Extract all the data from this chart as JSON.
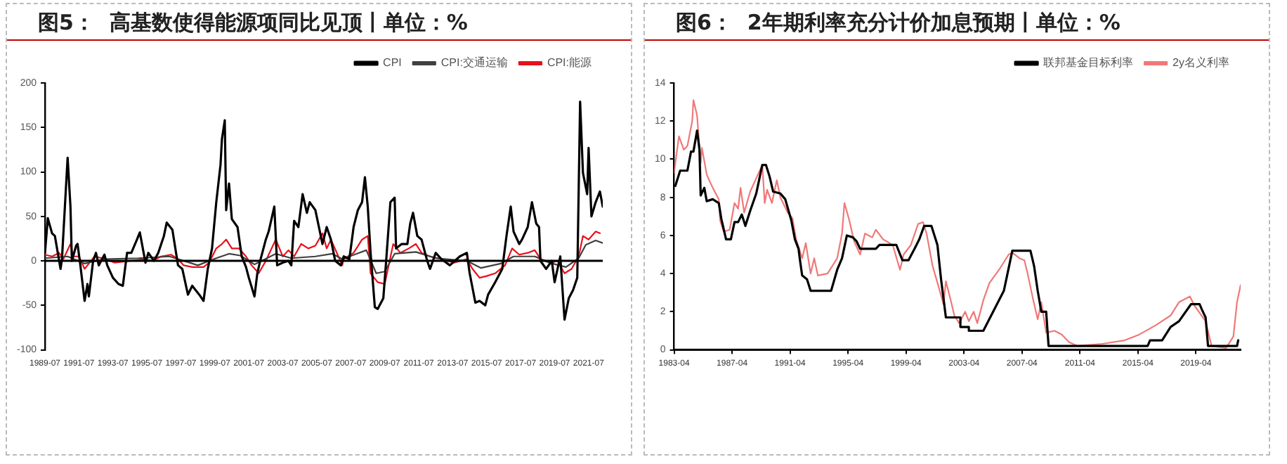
{
  "chart_data": [
    {
      "type": "line",
      "title": "图5：  高基数使得能源项同比见顶丨单位：%",
      "legend": "top right",
      "grid": false,
      "xlim": [
        "1989-07",
        "2022-05"
      ],
      "xticks": [
        "1989-07",
        "1991-07",
        "1993-07",
        "1995-07",
        "1997-07",
        "1999-07",
        "2001-07",
        "2003-07",
        "2005-07",
        "2007-07",
        "2009-07",
        "2011-07",
        "2013-07",
        "2015-07",
        "2017-07",
        "2019-07",
        "2021-07"
      ],
      "ylim": [
        -100,
        200
      ],
      "yticks": [
        -100,
        -50,
        0,
        50,
        100,
        150,
        200
      ],
      "ref_lines": [
        {
          "axis": "y",
          "value": 0,
          "color": "#000000"
        }
      ],
      "series": [
        {
          "name": "CPI",
          "color": "#000000",
          "x": [
            "1989-07",
            "1989-09",
            "1989-12",
            "1990-02",
            "1990-06",
            "1990-07",
            "1990-11",
            "1991-01",
            "1991-02",
            "1991-05",
            "1991-06",
            "1991-08",
            "1991-11",
            "1992-01",
            "1992-02",
            "1992-05",
            "1992-07",
            "1992-09",
            "1993-01",
            "1993-03",
            "1993-07",
            "1993-11",
            "1994-02",
            "1994-05",
            "1994-08",
            "1994-12",
            "1995-02",
            "1995-06",
            "1995-08",
            "1995-12",
            "1996-03",
            "1996-07",
            "1996-09",
            "1997-01",
            "1997-05",
            "1997-08",
            "1997-12",
            "1998-03",
            "1998-08",
            "1998-11",
            "1999-02",
            "1999-05",
            "1999-08",
            "1999-11",
            "1999-12",
            "2000-02",
            "2000-03",
            "2000-05",
            "2000-07",
            "2000-11",
            "2001-02",
            "2001-05",
            "2001-07",
            "2001-11",
            "2002-01",
            "2002-03",
            "2002-07",
            "2002-09",
            "2003-01",
            "2003-03",
            "2003-07",
            "2003-11",
            "2004-01",
            "2004-03",
            "2004-06",
            "2004-09",
            "2004-12",
            "2005-02",
            "2005-06",
            "2005-11",
            "2006-02",
            "2006-05",
            "2006-08",
            "2006-12",
            "2007-02",
            "2007-06",
            "2007-09",
            "2007-12",
            "2008-03",
            "2008-05",
            "2008-07",
            "2008-09",
            "2008-12",
            "2009-02",
            "2009-06",
            "2009-08",
            "2009-11",
            "2010-02",
            "2010-03",
            "2010-07",
            "2010-11",
            "2011-01",
            "2011-03",
            "2011-06",
            "2011-09",
            "2012-01",
            "2012-03",
            "2012-07",
            "2012-11",
            "2013-05",
            "2013-12",
            "2014-05",
            "2014-07",
            "2014-11",
            "2015-02",
            "2015-06",
            "2015-08",
            "2016-01",
            "2016-06",
            "2016-09",
            "2016-12",
            "2017-02",
            "2017-06",
            "2017-08",
            "2017-12",
            "2018-03",
            "2018-06",
            "2018-08",
            "2018-09",
            "2019-01",
            "2019-05",
            "2019-07",
            "2019-11",
            "2020-02",
            "2020-05",
            "2020-08",
            "2020-11",
            "2021-01",
            "2021-03",
            "2021-06",
            "2021-07",
            "2021-09",
            "2021-12",
            "2022-03",
            "2022-05"
          ],
          "values": [
            9,
            48,
            31,
            28,
            -9,
            2,
            116,
            61,
            0,
            17,
            19,
            -5,
            -45,
            -26,
            -40,
            0,
            9,
            -5,
            7,
            -5,
            -19,
            -26,
            -28,
            9,
            9,
            24,
            32,
            -2,
            9,
            0,
            9,
            28,
            43,
            35,
            -5,
            -9,
            -38,
            -28,
            -38,
            -45,
            -9,
            14,
            66,
            108,
            137,
            158,
            57,
            87,
            47,
            38,
            5,
            -7,
            -19,
            -40,
            -14,
            0,
            24,
            33,
            61,
            -5,
            -2,
            0,
            -5,
            45,
            38,
            75,
            54,
            66,
            57,
            19,
            38,
            24,
            0,
            -5,
            5,
            2,
            38,
            57,
            66,
            94,
            61,
            9,
            -52,
            -54,
            -42,
            0,
            66,
            71,
            14,
            19,
            19,
            42,
            54,
            28,
            24,
            0,
            -9,
            9,
            2,
            -5,
            5,
            9,
            -14,
            -47,
            -45,
            -50,
            -38,
            -24,
            -9,
            28,
            61,
            33,
            19,
            24,
            38,
            66,
            42,
            38,
            0,
            -9,
            0,
            -24,
            5,
            -66,
            -42,
            -33,
            -19,
            179,
            99,
            75,
            127,
            50,
            66,
            78,
            61
          ]
        },
        {
          "name": "CPI:交通运输",
          "color": "#404040",
          "x": [
            "1989-07",
            "1990-11",
            "1991-11",
            "1993-01",
            "1995-01",
            "1996-11",
            "1998-07",
            "1999-08",
            "2000-05",
            "2001-01",
            "2001-11",
            "2003-02",
            "2004-01",
            "2005-06",
            "2006-06",
            "2007-01",
            "2008-06",
            "2009-01",
            "2009-07",
            "2010-02",
            "2011-05",
            "2012-07",
            "2014-05",
            "2015-03",
            "2016-05",
            "2017-02",
            "2018-05",
            "2019-03",
            "2020-03",
            "2020-12",
            "2021-05",
            "2021-12",
            "2022-05"
          ],
          "values": [
            3,
            5,
            -3,
            2,
            3,
            5,
            -5,
            3,
            8,
            6,
            -4,
            8,
            3,
            5,
            8,
            2,
            12,
            -14,
            -12,
            8,
            10,
            3,
            0,
            -8,
            -3,
            5,
            5,
            -2,
            -7,
            3,
            18,
            23,
            20
          ]
        },
        {
          "name": "CPI:能源",
          "color": "#e8101a",
          "x": [
            "1989-07",
            "1989-12",
            "1990-05",
            "1990-08",
            "1991-01",
            "1991-03",
            "1991-07",
            "1991-11",
            "1992-01",
            "1992-06",
            "1993-02",
            "1993-08",
            "1994-07",
            "1995-05",
            "1995-11",
            "1996-05",
            "1996-12",
            "1997-05",
            "1997-09",
            "1998-03",
            "1998-11",
            "1999-03",
            "1999-08",
            "1999-12",
            "2000-03",
            "2000-07",
            "2000-12",
            "2001-05",
            "2001-09",
            "2002-02",
            "2002-07",
            "2003-02",
            "2003-07",
            "2003-11",
            "2004-03",
            "2004-08",
            "2005-01",
            "2005-06",
            "2005-11",
            "2006-02",
            "2006-05",
            "2007-01",
            "2007-02",
            "2007-09",
            "2008-03",
            "2008-07",
            "2008-09",
            "2009-02",
            "2009-07",
            "2010-01",
            "2010-06",
            "2010-12",
            "2011-05",
            "2011-09",
            "2012-03",
            "2012-11",
            "2013-08",
            "2014-05",
            "2014-09",
            "2015-02",
            "2015-07",
            "2016-01",
            "2016-08",
            "2017-01",
            "2017-06",
            "2017-12",
            "2018-05",
            "2018-09",
            "2019-05",
            "2019-09",
            "2020-02",
            "2020-07",
            "2020-12",
            "2021-03",
            "2021-07",
            "2021-12",
            "2022-03"
          ],
          "values": [
            7,
            5,
            9,
            2,
            19,
            5,
            5,
            -9,
            -5,
            5,
            2,
            -2,
            0,
            2,
            0,
            5,
            7,
            2,
            -5,
            -7,
            -7,
            -2,
            14,
            19,
            24,
            14,
            14,
            5,
            -5,
            -14,
            0,
            24,
            5,
            12,
            5,
            19,
            14,
            17,
            31,
            14,
            24,
            -5,
            2,
            9,
            24,
            28,
            -14,
            -24,
            -26,
            19,
            9,
            14,
            19,
            9,
            5,
            2,
            -2,
            2,
            -9,
            -19,
            -17,
            -14,
            -5,
            14,
            7,
            9,
            12,
            2,
            -2,
            0,
            -14,
            -9,
            5,
            28,
            24,
            33,
            31
          ]
        }
      ]
    },
    {
      "type": "line",
      "title": "图6：  2年期利率充分计价加息预期丨单位：%",
      "legend": "top right",
      "grid": false,
      "xlim": [
        "1983-04",
        "2022-05"
      ],
      "xticks": [
        "1983-04",
        "1987-04",
        "1991-04",
        "1995-04",
        "1999-04",
        "2003-04",
        "2007-04",
        "2011-04",
        "2015-04",
        "2019-04"
      ],
      "ylim": [
        0,
        14
      ],
      "yticks": [
        0,
        2,
        4,
        6,
        8,
        10,
        12,
        14
      ],
      "series": [
        {
          "name": "联邦基金目标利率",
          "color": "#000000",
          "x": [
            "1983-05",
            "1983-09",
            "1984-03",
            "1984-06",
            "1984-08",
            "1984-11",
            "1985-01",
            "1985-02",
            "1985-05",
            "1985-07",
            "1985-12",
            "1986-05",
            "1986-07",
            "1986-11",
            "1987-03",
            "1987-06",
            "1987-09",
            "1987-12",
            "1988-03",
            "1988-07",
            "1988-12",
            "1989-05",
            "1989-08",
            "1989-11",
            "1990-02",
            "1990-08",
            "1990-12",
            "1991-05",
            "1991-08",
            "1991-11",
            "1991-12",
            "1992-02",
            "1992-06",
            "1992-09",
            "1994-02",
            "1994-07",
            "1994-11",
            "1995-02",
            "1995-03",
            "1995-08",
            "1995-11",
            "1996-02",
            "1997-03",
            "1997-06",
            "1998-08",
            "1999-01",
            "1999-06",
            "1999-11",
            "2000-03",
            "2000-07",
            "2001-01",
            "2001-06",
            "2001-09",
            "2002-01",
            "2003-01",
            "2003-01",
            "2003-08",
            "2003-08",
            "2004-08",
            "2006-01",
            "2006-08",
            "2007-11",
            "2008-02",
            "2008-05",
            "2008-08",
            "2008-12",
            "2009-02",
            "2015-12",
            "2016-02",
            "2016-12",
            "2017-07",
            "2018-02",
            "2018-12",
            "2019-07",
            "2019-09",
            "2019-12",
            "2020-02",
            "2022-02",
            "2022-03"
          ],
          "values": [
            8.6,
            9.4,
            9.4,
            10.4,
            10.4,
            11.5,
            10.5,
            8.1,
            8.5,
            7.8,
            7.9,
            7.7,
            6.9,
            5.8,
            5.8,
            6.7,
            6.7,
            7.1,
            6.5,
            7.3,
            8.2,
            9.7,
            9.7,
            9.1,
            8.3,
            8.2,
            7.9,
            6.8,
            5.8,
            5.3,
            4.8,
            3.9,
            3.7,
            3.1,
            3.1,
            4.2,
            4.8,
            5.7,
            6.0,
            5.9,
            5.7,
            5.3,
            5.3,
            5.5,
            5.5,
            4.7,
            4.7,
            5.3,
            5.8,
            6.5,
            6.5,
            5.5,
            3.7,
            1.7,
            1.7,
            1.2,
            1.2,
            1.0,
            1.0,
            3.1,
            5.2,
            5.2,
            4.4,
            3.1,
            2.0,
            2.0,
            0.2,
            0.2,
            0.5,
            0.5,
            1.2,
            1.5,
            2.4,
            2.4,
            2.1,
            1.7,
            0.2,
            0.2,
            0.5
          ]
        },
        {
          "name": "2y名义利率",
          "color": "#f07878",
          "x": [
            "1983-04",
            "1983-08",
            "1983-12",
            "1984-03",
            "1984-07",
            "1984-08",
            "1984-11",
            "1985-02",
            "1985-03",
            "1985-07",
            "1985-09",
            "1985-12",
            "1986-05",
            "1986-06",
            "1986-09",
            "1987-02",
            "1987-06",
            "1987-09",
            "1987-11",
            "1988-02",
            "1988-07",
            "1988-12",
            "1989-05",
            "1989-07",
            "1989-09",
            "1990-01",
            "1990-05",
            "1990-08",
            "1991-02",
            "1991-06",
            "1991-09",
            "1992-02",
            "1992-05",
            "1992-09",
            "1992-12",
            "1993-03",
            "1993-11",
            "1994-07",
            "1994-11",
            "1995-01",
            "1995-05",
            "1995-09",
            "1996-02",
            "1996-06",
            "1996-12",
            "1997-03",
            "1997-09",
            "1998-05",
            "1998-11",
            "1999-02",
            "1999-08",
            "2000-02",
            "2000-06",
            "2000-09",
            "2001-02",
            "2001-07",
            "2001-11",
            "2002-01",
            "2002-05",
            "2002-08",
            "2002-12",
            "2003-05",
            "2003-08",
            "2003-12",
            "2004-03",
            "2004-08",
            "2005-01",
            "2005-09",
            "2006-05",
            "2006-08",
            "2007-02",
            "2007-06",
            "2007-09",
            "2008-01",
            "2008-05",
            "2008-08",
            "2008-12",
            "2009-07",
            "2010-01",
            "2010-07",
            "2011-02",
            "2012-09",
            "2014-05",
            "2015-05",
            "2016-07",
            "2017-07",
            "2018-02",
            "2018-11",
            "2019-03",
            "2019-12",
            "2020-05",
            "2021-05",
            "2021-11",
            "2022-02",
            "2022-05"
          ],
          "values": [
            9.3,
            11.2,
            10.5,
            10.7,
            12.0,
            13.1,
            12.3,
            9.8,
            10.6,
            9.2,
            8.9,
            8.5,
            7.9,
            6.8,
            6.2,
            6.3,
            7.7,
            7.4,
            8.5,
            7.2,
            8.3,
            9.0,
            9.7,
            7.7,
            8.4,
            7.7,
            8.9,
            8.0,
            7.2,
            6.9,
            5.8,
            4.8,
            5.6,
            4.0,
            4.8,
            3.9,
            4.0,
            4.8,
            6.1,
            7.7,
            6.8,
            5.7,
            5.0,
            6.1,
            5.9,
            6.3,
            5.8,
            5.5,
            4.2,
            5.0,
            5.5,
            6.6,
            6.7,
            6.1,
            4.4,
            3.3,
            2.4,
            3.6,
            2.6,
            1.8,
            1.4,
            2.0,
            1.5,
            2.0,
            1.4,
            2.6,
            3.5,
            4.2,
            5.0,
            5.1,
            4.8,
            4.7,
            3.9,
            2.7,
            1.6,
            2.5,
            0.9,
            1.0,
            0.8,
            0.4,
            0.2,
            0.3,
            0.5,
            0.8,
            1.3,
            1.8,
            2.5,
            2.8,
            2.3,
            1.5,
            0.2,
            0.1,
            0.7,
            2.5,
            3.4
          ]
        }
      ]
    }
  ]
}
